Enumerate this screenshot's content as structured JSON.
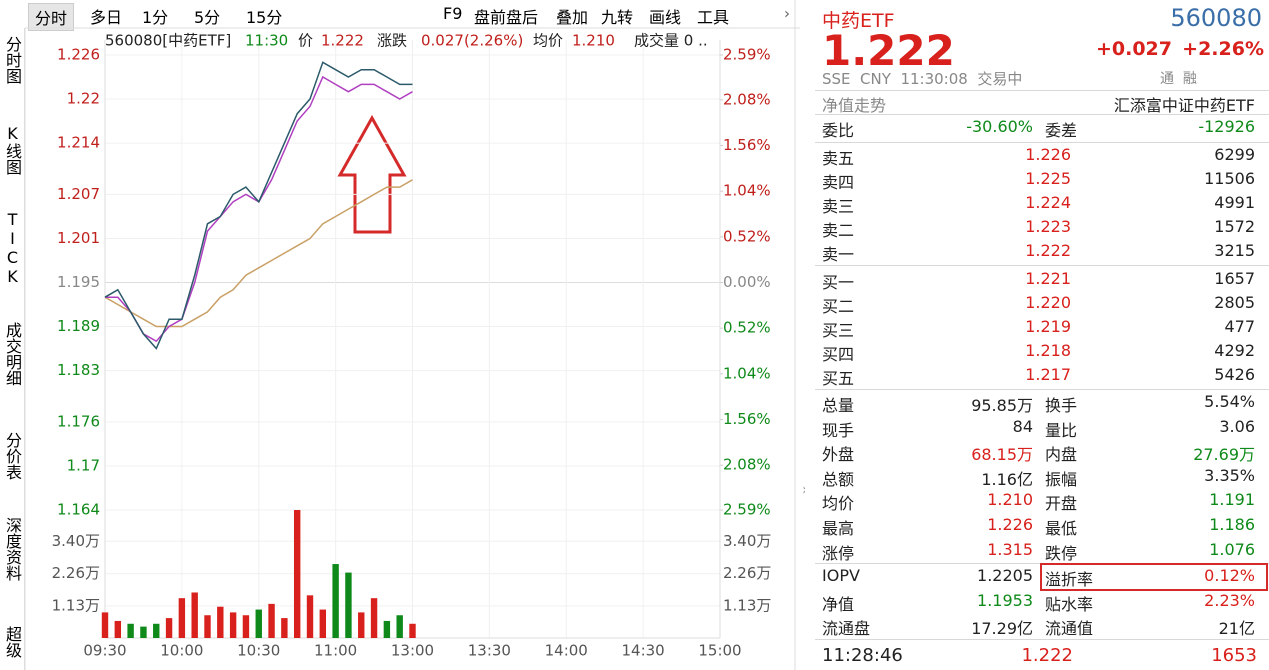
{
  "toolbar": {
    "tabs": [
      "分时",
      "多日",
      "1分",
      "5分",
      "15分"
    ],
    "tools": [
      "F9",
      "盘前盘后",
      "叠加",
      "九转",
      "画线",
      "工具"
    ]
  },
  "side_tabs": [
    "分时图",
    "K线图",
    "TICK",
    "成交明细",
    "分价表",
    "深度资料",
    "超级"
  ],
  "chart_info": {
    "code_name": "560080[中药ETF]",
    "time": "11:30",
    "price_label": "价",
    "price": "1.222",
    "change_label": "涨跌",
    "change": "0.027(2.26%)",
    "avg_label": "均价",
    "avg": "1.210",
    "vol_label": "成交量 0 .."
  },
  "chart_data": {
    "type": "line",
    "x": [
      "09:30",
      "09:35",
      "09:40",
      "09:45",
      "09:50",
      "09:55",
      "10:00",
      "10:05",
      "10:10",
      "10:15",
      "10:20",
      "10:25",
      "10:30",
      "10:35",
      "10:40",
      "10:45",
      "10:50",
      "10:55",
      "11:00",
      "11:05",
      "11:10",
      "11:15",
      "11:20",
      "11:25",
      "11:30"
    ],
    "series": [
      {
        "name": "价",
        "color": "#2b5a6a",
        "values": [
          1.193,
          1.194,
          1.191,
          1.188,
          1.186,
          1.19,
          1.19,
          1.196,
          1.203,
          1.204,
          1.207,
          1.208,
          1.206,
          1.21,
          1.214,
          1.218,
          1.22,
          1.225,
          1.224,
          1.223,
          1.224,
          1.224,
          1.223,
          1.222,
          1.222
        ]
      },
      {
        "name": "IOPV",
        "color": "#b040c0",
        "values": [
          1.193,
          1.193,
          1.191,
          1.188,
          1.187,
          1.189,
          1.19,
          1.195,
          1.202,
          1.204,
          1.206,
          1.207,
          1.206,
          1.209,
          1.213,
          1.217,
          1.219,
          1.223,
          1.222,
          1.221,
          1.222,
          1.222,
          1.221,
          1.22,
          1.221
        ]
      },
      {
        "name": "均价",
        "color": "#c9a066",
        "values": [
          1.193,
          1.192,
          1.191,
          1.19,
          1.189,
          1.189,
          1.189,
          1.19,
          1.191,
          1.193,
          1.194,
          1.196,
          1.197,
          1.198,
          1.199,
          1.2,
          1.201,
          1.203,
          1.204,
          1.205,
          1.206,
          1.207,
          1.208,
          1.208,
          1.209
        ]
      }
    ],
    "volume": [
      0.9,
      0.6,
      0.5,
      0.4,
      0.5,
      0.7,
      1.4,
      1.6,
      0.8,
      1.1,
      0.9,
      0.8,
      1.0,
      1.2,
      0.7,
      4.5,
      1.5,
      1.0,
      2.6,
      2.3,
      0.9,
      1.4,
      0.6,
      0.8,
      0.5
    ],
    "ylim": [
      1.164,
      1.226
    ],
    "yticks": [
      1.226,
      1.22,
      1.214,
      1.207,
      1.201,
      1.195,
      1.189,
      1.183,
      1.176,
      1.17,
      1.164
    ],
    "y2lim": [
      -2.59,
      2.59
    ],
    "y2ticks": [
      {
        "value": 2.59,
        "label": "2.59%"
      },
      {
        "value": 2.08,
        "label": "2.08%"
      },
      {
        "value": 1.56,
        "label": "1.56%"
      },
      {
        "value": 1.04,
        "label": "1.04%"
      },
      {
        "value": 0.52,
        "label": "0.52%"
      },
      {
        "value": 0,
        "label": "0.00%"
      },
      {
        "value": -0.52,
        "label": "0.52%"
      },
      {
        "value": -1.04,
        "label": "1.04%"
      },
      {
        "value": -1.56,
        "label": "1.56%"
      },
      {
        "value": -2.08,
        "label": "2.08%"
      },
      {
        "value": -2.59,
        "label": "2.59%"
      }
    ],
    "volume_ylim": [
      0,
      4.5
    ],
    "volume_ticks": [
      {
        "value": 3.4,
        "label": "3.40万"
      },
      {
        "value": 2.26,
        "label": "2.26万"
      },
      {
        "value": 1.13,
        "label": "1.13万"
      }
    ],
    "xticks": [
      "09:30",
      "10:00",
      "10:30",
      "11:00",
      "13:00",
      "13:30",
      "14:00",
      "14:30",
      "15:00"
    ],
    "grid": true
  },
  "quote": {
    "name": "中药ETF",
    "code": "560080",
    "price": "1.222",
    "change": "+0.027",
    "change_pct": "+2.26%",
    "market": "SSE  CNY  11:30:08  交易中",
    "flags": "通  融"
  },
  "nav": {
    "label": "净值走势",
    "fund": "汇添富中证中药ETF"
  },
  "ratio": [
    "委比",
    "-30.60%",
    "委差",
    "-12926"
  ],
  "asks": [
    [
      "卖五",
      "1.226",
      "6299"
    ],
    [
      "卖四",
      "1.225",
      "11506"
    ],
    [
      "卖三",
      "1.224",
      "4991"
    ],
    [
      "卖二",
      "1.223",
      "1572"
    ],
    [
      "卖一",
      "1.222",
      "3215"
    ]
  ],
  "bids": [
    [
      "买一",
      "1.221",
      "1657"
    ],
    [
      "买二",
      "1.220",
      "2805"
    ],
    [
      "买三",
      "1.219",
      "477"
    ],
    [
      "买四",
      "1.218",
      "4292"
    ],
    [
      "买五",
      "1.217",
      "5426"
    ]
  ],
  "stats": [
    [
      "总量",
      "95.85万",
      "换手",
      "5.54%"
    ],
    [
      "现手",
      "84",
      "量比",
      "3.06"
    ],
    [
      "外盘",
      "68.15万",
      "内盘",
      "27.69万"
    ],
    [
      "总额",
      "1.16亿",
      "振幅",
      "3.35%"
    ],
    [
      "均价",
      "1.210",
      "开盘",
      "1.191"
    ],
    [
      "最高",
      "1.226",
      "最低",
      "1.186"
    ],
    [
      "涨停",
      "1.315",
      "跌停",
      "1.076"
    ]
  ],
  "iopv": [
    [
      "IOPV",
      "1.2205",
      "溢折率",
      "0.12%"
    ],
    [
      "净值",
      "1.1953",
      "贴水率",
      "2.23%"
    ],
    [
      "流通盘",
      "17.29亿",
      "流通值",
      "21亿"
    ]
  ],
  "last_trade": [
    "11:28:46",
    "1.222",
    "1653"
  ]
}
